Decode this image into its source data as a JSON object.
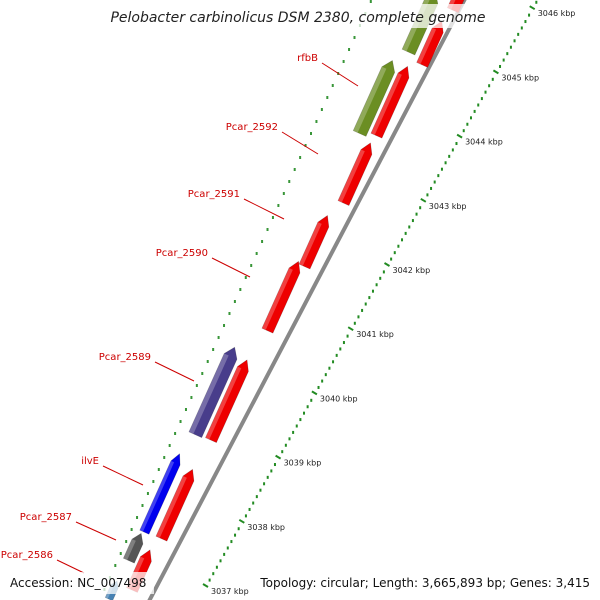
{
  "title": "Pelobacter carbinolicus DSM 2380, complete genome",
  "accession": "Accession: NC_007498",
  "summary": "Topology: circular; Length: 3,665,893 bp; Genes: 3,415",
  "colors": {
    "reverse_cds": "#ee0000",
    "forward_olive": "#6b8e23",
    "forward_purple": "#483d8b",
    "forward_blue": "#0000ee",
    "forward_grey": "#555555",
    "backbone": "#888888",
    "tick": "#228b22",
    "label": "#cc0000"
  },
  "ticks": [
    {
      "label": "3037 kbp",
      "kbp": 3037
    },
    {
      "label": "3038 kbp",
      "kbp": 3038
    },
    {
      "label": "3039 kbp",
      "kbp": 3039
    },
    {
      "label": "3040 kbp",
      "kbp": 3040
    },
    {
      "label": "3041 kbp",
      "kbp": 3041
    },
    {
      "label": "3042 kbp",
      "kbp": 3042
    },
    {
      "label": "3043 kbp",
      "kbp": 3043
    },
    {
      "label": "3044 kbp",
      "kbp": 3044
    },
    {
      "label": "3045 kbp",
      "kbp": 3045
    },
    {
      "label": "3046 kbp",
      "kbp": 3046
    }
  ],
  "gene_labels": [
    {
      "name": "rfbB"
    },
    {
      "name": "Pcar_2592"
    },
    {
      "name": "Pcar_2591"
    },
    {
      "name": "Pcar_2590"
    },
    {
      "name": "Pcar_2589"
    },
    {
      "name": "ilvE"
    },
    {
      "name": "Pcar_2587"
    },
    {
      "name": "Pcar_2586"
    }
  ]
}
